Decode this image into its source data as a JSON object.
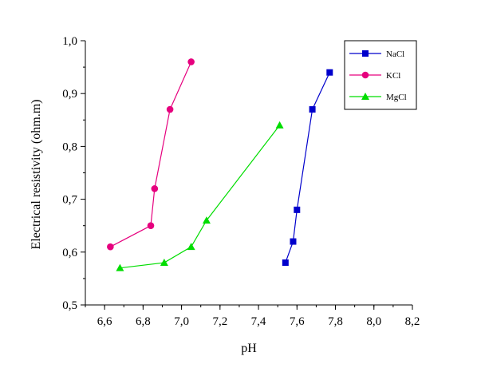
{
  "chart_data": {
    "type": "line",
    "title": "",
    "xlabel": "pH",
    "ylabel": "Electrical resistivity (ohm.m)",
    "xlim": [
      6.5,
      8.2
    ],
    "ylim": [
      0.5,
      1.0
    ],
    "x_ticks": [
      "6,6",
      "6,8",
      "7,0",
      "7,2",
      "7,4",
      "7,6",
      "7,8",
      "8,0",
      "8,2"
    ],
    "y_ticks": [
      "0,5",
      "0,6",
      "0,7",
      "0,8",
      "0,9",
      "1,0"
    ],
    "grid": false,
    "legend_position": "top-right",
    "series": [
      {
        "name": "NaCl",
        "color": "#0000cc",
        "marker": "square",
        "points": [
          [
            7.54,
            0.58
          ],
          [
            7.58,
            0.62
          ],
          [
            7.6,
            0.68
          ],
          [
            7.68,
            0.87
          ],
          [
            7.77,
            0.94
          ]
        ]
      },
      {
        "name": "KCl",
        "color": "#e6007e",
        "marker": "circle",
        "points": [
          [
            6.63,
            0.61
          ],
          [
            6.84,
            0.65
          ],
          [
            6.86,
            0.72
          ],
          [
            6.94,
            0.87
          ],
          [
            7.05,
            0.96
          ]
        ]
      },
      {
        "name": "MgCl",
        "color": "#00dd00",
        "marker": "triangle",
        "points": [
          [
            6.68,
            0.57
          ],
          [
            6.91,
            0.58
          ],
          [
            7.05,
            0.61
          ],
          [
            7.13,
            0.66
          ],
          [
            7.51,
            0.84
          ]
        ]
      }
    ]
  }
}
